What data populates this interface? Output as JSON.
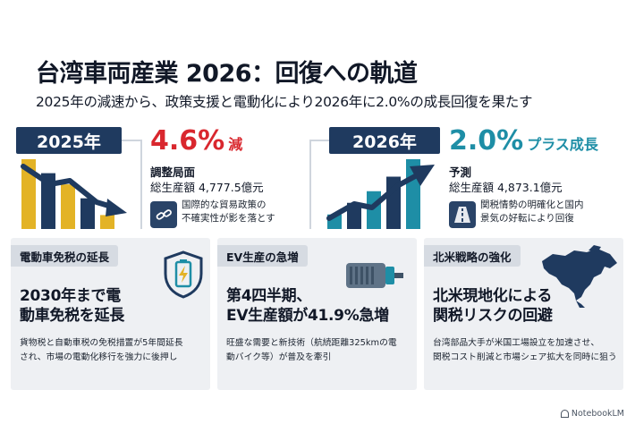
{
  "header": {
    "title": "台湾車両産業 2026：回復への軌道",
    "subtitle": "2025年の減速から、政策支援と電動化により2026年に2.0%の成長回復を果たす"
  },
  "left_panel": {
    "year": "2025年",
    "pct": "4.6%",
    "pct_suffix": "減",
    "label": "調整局面",
    "value": "総生産額 4,777.5億元",
    "note_line1": "国際的な貿易政策の",
    "note_line2": "不確実性が影を落とす",
    "chart_data": {
      "type": "bar",
      "trend": "down",
      "values": [
        5,
        4,
        3.2,
        2.2,
        1
      ],
      "colors": [
        "#e3b326",
        "#1f3a5f"
      ]
    }
  },
  "right_panel": {
    "year": "2026年",
    "pct": "2.0%",
    "pct_suffix": "プラス成長",
    "label": "予測",
    "value": "総生産額 4,873.1億元",
    "note_line1": "関税情勢の明確化と国内",
    "note_line2": "景気の好転により回復",
    "chart_data": {
      "type": "bar",
      "trend": "up",
      "values": [
        1,
        1.8,
        2.6,
        3.6,
        4.8
      ],
      "colors": [
        "#1e8ea6",
        "#1f3a5f"
      ]
    }
  },
  "cards": [
    {
      "tab": "電動車免税の延長",
      "head_line1": "2030年まで電",
      "head_line2": "動車免税を延長",
      "body_line1": "貨物税と自動車税の免税措置が5年間延長",
      "body_line2": "され、市場の電動化移行を強力に後押し",
      "icon": "battery-shield-icon"
    },
    {
      "tab": "EV生産の急増",
      "head_line1": "第4四半期、",
      "head_line2": "EV生産額が41.9%急増",
      "body_line1": "旺盛な需要と新技術（航続距離325kmの電",
      "body_line2": "動バイク等）が普及を牽引",
      "icon": "motor-icon"
    },
    {
      "tab": "北米戦略の強化",
      "head_line1": "北米現地化による",
      "head_line2": "関税リスクの回避",
      "body_line1": "台湾部品大手が米国工場設立を加速させ、",
      "body_line2": "関税コスト削減と市場シェア拡大を同時に狙う",
      "icon": "north-america-map-icon"
    }
  ],
  "brand": "NotebookLM",
  "colors": {
    "navy": "#1f3a5f",
    "red": "#d9272e",
    "teal": "#1e8ea6",
    "gold": "#e3b326",
    "card_bg": "#eef0f3"
  }
}
